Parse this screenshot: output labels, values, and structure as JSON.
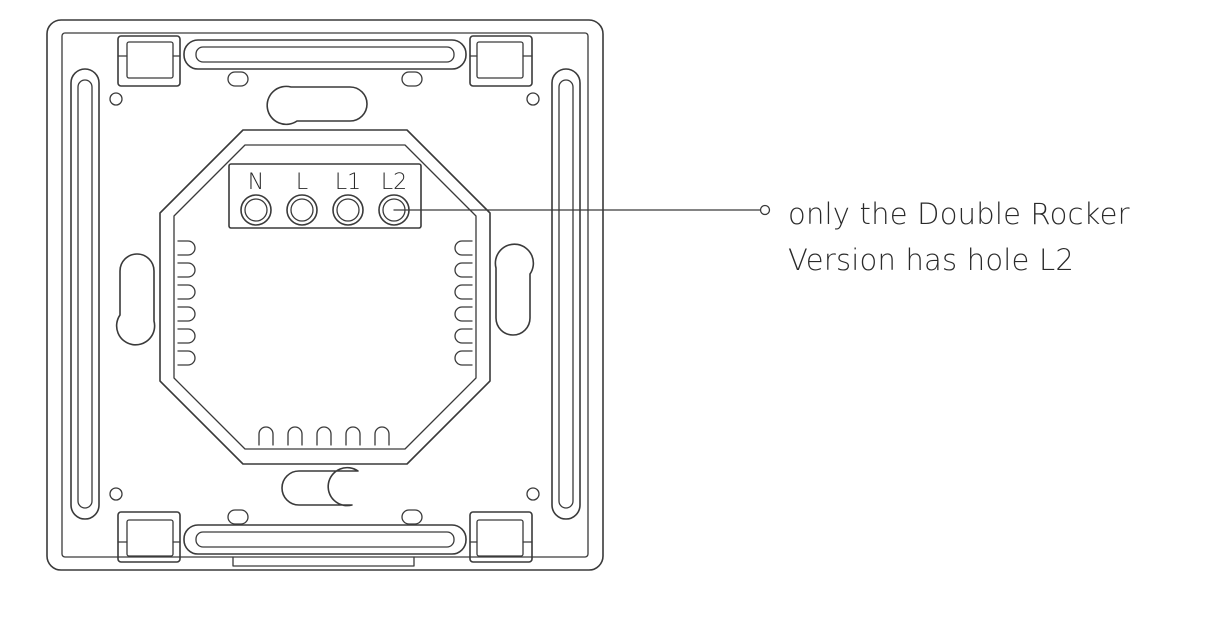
{
  "terminals": [
    "N",
    "L",
    "L1",
    "L2"
  ],
  "callout": {
    "line1": "only the Double Rocker",
    "line2": "Version has hole L2"
  }
}
